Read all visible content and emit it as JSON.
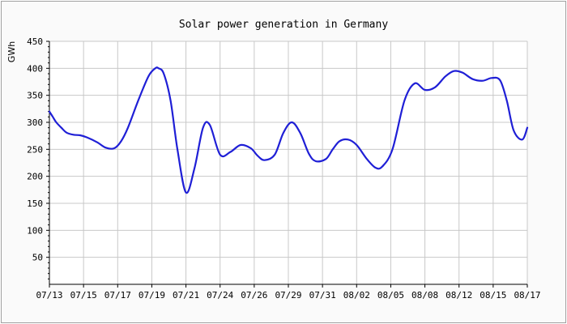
{
  "chart_data": {
    "type": "line",
    "title": "Solar power generation in Germany",
    "ylabel": "GWh",
    "xlabel": "",
    "ylim": [
      0,
      450
    ],
    "y_ticks": [
      50,
      100,
      150,
      200,
      250,
      300,
      350,
      400,
      450
    ],
    "x_tick_labels": [
      "07/13",
      "07/15",
      "07/17",
      "07/19",
      "07/21",
      "07/24",
      "07/26",
      "07/29",
      "07/31",
      "08/02",
      "08/05",
      "08/08",
      "08/12",
      "08/15",
      "08/17"
    ],
    "grid": true,
    "legend": "none",
    "line_color": "#1f1fd6",
    "series": [
      {
        "x_index": [
          0,
          0.1,
          0.2,
          0.35,
          0.5,
          0.7,
          0.9,
          1.1,
          1.4,
          1.65,
          1.9,
          2.1,
          2.3,
          2.6,
          2.9,
          3.1,
          3.2,
          3.35,
          3.55,
          3.75,
          4.0,
          4.25,
          4.5,
          4.7,
          5.0,
          5.3,
          5.6,
          5.9,
          6.1,
          6.3,
          6.6,
          6.85,
          7.1,
          7.35,
          7.6,
          7.8,
          8.1,
          8.3,
          8.5,
          8.75,
          9.0,
          9.3,
          9.55,
          9.75,
          10.05,
          10.4,
          10.7,
          11.0,
          11.3,
          11.6,
          11.85,
          12.1,
          12.4,
          12.7,
          12.95,
          13.2,
          13.4,
          13.6,
          13.85,
          14.0
        ],
        "values": [
          320,
          310,
          300,
          290,
          281,
          277,
          276,
          272,
          263,
          253,
          252,
          265,
          290,
          340,
          385,
          400,
          400,
          390,
          340,
          250,
          170,
          215,
          290,
          295,
          240,
          245,
          258,
          252,
          238,
          230,
          240,
          280,
          300,
          280,
          242,
          228,
          232,
          250,
          265,
          268,
          258,
          232,
          216,
          218,
          250,
          340,
          372,
          360,
          365,
          385,
          395,
          392,
          380,
          377,
          382,
          378,
          340,
          285,
          268,
          290
        ]
      }
    ]
  }
}
